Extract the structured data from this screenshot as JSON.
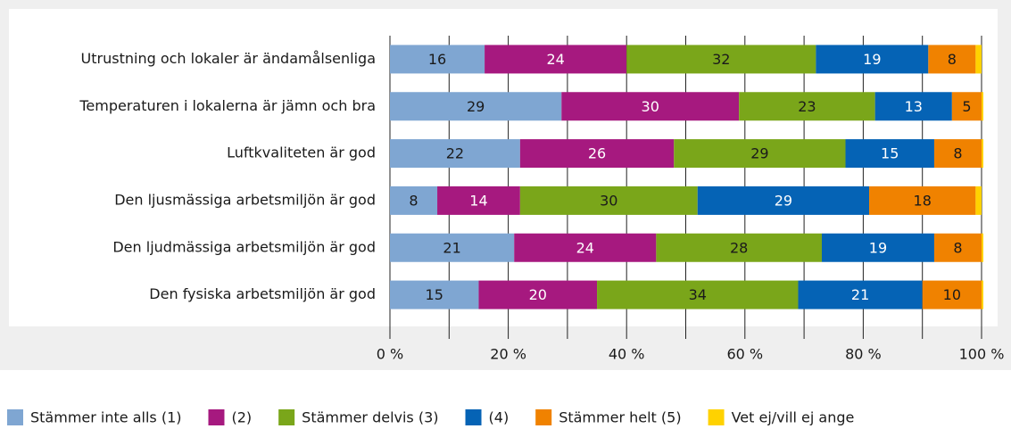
{
  "chart_data": {
    "type": "stacked_barh",
    "categories": [
      "Utrustning och lokaler är ändamålsenliga",
      "Temperaturen i lokalerna är jämn och bra",
      "Luftkvaliteten är god",
      "Den ljusmässiga arbetsmiljön är god",
      "Den ljudmässiga arbetsmiljön är god",
      "Den fysiska arbetsmiljön är god"
    ],
    "series": [
      {
        "name": "Stämmer inte alls (1)",
        "color": "#7fa6d2",
        "values": [
          16,
          29,
          22,
          8,
          21,
          15
        ]
      },
      {
        "name": "(2)",
        "color": "#a6197f",
        "values": [
          24,
          30,
          26,
          14,
          24,
          20
        ]
      },
      {
        "name": "Stämmer delvis (3)",
        "color": "#7aa61a",
        "values": [
          32,
          23,
          29,
          30,
          28,
          34
        ]
      },
      {
        "name": "(4)",
        "color": "#0563b5",
        "values": [
          19,
          13,
          15,
          29,
          19,
          21
        ]
      },
      {
        "name": "Stämmer helt (5)",
        "color": "#f08200",
        "values": [
          8,
          5,
          8,
          18,
          8,
          10
        ]
      },
      {
        "name": "Vet ej/vill ej ange",
        "color": "#ffd200",
        "values": [
          1,
          0.3,
          0.3,
          1,
          0.3,
          0.3
        ]
      }
    ],
    "labeled_series": [
      0,
      1,
      2,
      3,
      4
    ],
    "xlim": [
      0,
      100
    ],
    "xticks": [
      {
        "value": 0,
        "label": "0 %"
      },
      {
        "value": 20,
        "label": "20 %"
      },
      {
        "value": 40,
        "label": "40 %"
      },
      {
        "value": 60,
        "label": "60 %"
      },
      {
        "value": 80,
        "label": "80 %"
      },
      {
        "value": 100,
        "label": "100 %"
      }
    ],
    "minor_xticks": [
      10,
      30,
      50,
      70,
      90
    ],
    "grid": true,
    "legend": "bottom"
  }
}
